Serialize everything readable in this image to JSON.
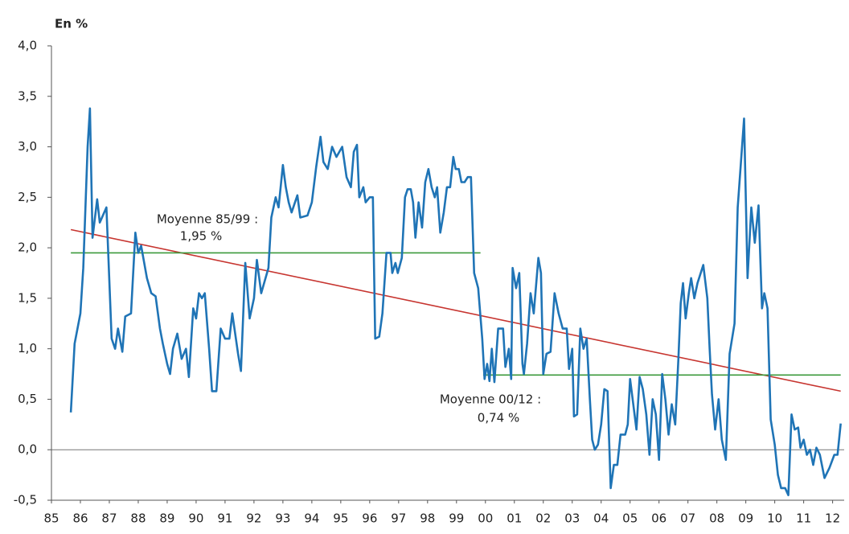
{
  "chart_data": {
    "type": "line",
    "y_label": "En %",
    "xlim": [
      1985,
      2012.4
    ],
    "xticks": [
      {
        "value": 1985,
        "label": "85"
      },
      {
        "value": 1986,
        "label": "86"
      },
      {
        "value": 1987,
        "label": "87"
      },
      {
        "value": 1988,
        "label": "88"
      },
      {
        "value": 1989,
        "label": "89"
      },
      {
        "value": 1990,
        "label": "90"
      },
      {
        "value": 1991,
        "label": "91"
      },
      {
        "value": 1992,
        "label": "92"
      },
      {
        "value": 1993,
        "label": "93"
      },
      {
        "value": 1994,
        "label": "94"
      },
      {
        "value": 1995,
        "label": "95"
      },
      {
        "value": 1996,
        "label": "96"
      },
      {
        "value": 1997,
        "label": "97"
      },
      {
        "value": 1998,
        "label": "98"
      },
      {
        "value": 1999,
        "label": "99"
      },
      {
        "value": 2000,
        "label": "00"
      },
      {
        "value": 2001,
        "label": "01"
      },
      {
        "value": 2002,
        "label": "02"
      },
      {
        "value": 2003,
        "label": "03"
      },
      {
        "value": 2004,
        "label": "04"
      },
      {
        "value": 2005,
        "label": "05"
      },
      {
        "value": 2006,
        "label": "06"
      },
      {
        "value": 2007,
        "label": "07"
      },
      {
        "value": 2008,
        "label": "08"
      },
      {
        "value": 2009,
        "label": "09"
      },
      {
        "value": 2010,
        "label": "10"
      },
      {
        "value": 2011,
        "label": "11"
      },
      {
        "value": 2012,
        "label": "12"
      }
    ],
    "ylim": [
      -0.5,
      4
    ],
    "yticks": [
      {
        "value": -0.5,
        "label": "-0,5"
      },
      {
        "value": 0,
        "label": "0,0"
      },
      {
        "value": 0.5,
        "label": "0,5"
      },
      {
        "value": 1,
        "label": "1,0"
      },
      {
        "value": 1.5,
        "label": "1,5"
      },
      {
        "value": 2,
        "label": "2,0"
      },
      {
        "value": 2.5,
        "label": "2,5"
      },
      {
        "value": 3,
        "label": "3,0"
      },
      {
        "value": 3.5,
        "label": "3,5"
      },
      {
        "value": 4,
        "label": "4,0"
      }
    ],
    "annotations": [
      "Moyenne 85/99 :",
      "1,95 %",
      "Moyenne 00/12 :",
      "0,74 %"
    ],
    "series": [
      {
        "color": "#1f74b6",
        "x": [
          1985.67,
          1985.8,
          1986.0,
          1986.1,
          1986.25,
          1986.33,
          1986.42,
          1986.58,
          1986.67,
          1986.9,
          1987.08,
          1987.2,
          1987.3,
          1987.45,
          1987.55,
          1987.75,
          1987.9,
          1988.0,
          1988.1,
          1988.3,
          1988.45,
          1988.6,
          1988.75,
          1988.85,
          1989.0,
          1989.1,
          1989.2,
          1989.35,
          1989.5,
          1989.65,
          1989.75,
          1989.9,
          1990.0,
          1990.1,
          1990.2,
          1990.3,
          1990.45,
          1990.55,
          1990.7,
          1990.85,
          1991.0,
          1991.15,
          1991.25,
          1991.45,
          1991.55,
          1991.7,
          1991.85,
          1992.0,
          1992.1,
          1992.25,
          1992.4,
          1992.5,
          1992.6,
          1992.75,
          1992.85,
          1993.0,
          1993.1,
          1993.2,
          1993.3,
          1993.5,
          1993.6,
          1993.85,
          1994.0,
          1994.15,
          1994.3,
          1994.4,
          1994.55,
          1994.7,
          1994.85,
          1995.05,
          1995.2,
          1995.35,
          1995.45,
          1995.56,
          1995.64,
          1995.78,
          1995.86,
          1996.0,
          1996.11,
          1996.19,
          1996.33,
          1996.44,
          1996.58,
          1996.72,
          1996.78,
          1996.89,
          1996.97,
          1997.11,
          1997.22,
          1997.31,
          1997.42,
          1997.5,
          1997.58,
          1997.69,
          1997.81,
          1997.92,
          1998.03,
          1998.14,
          1998.25,
          1998.33,
          1998.44,
          1998.56,
          1998.67,
          1998.78,
          1998.89,
          1998.97,
          1999.08,
          1999.17,
          1999.28,
          1999.39,
          1999.5,
          1999.61,
          1999.75,
          1999.89,
          1999.97,
          2000.06,
          2000.14,
          2000.22,
          2000.31,
          2000.44,
          2000.61,
          2000.69,
          2000.81,
          2000.89,
          2000.94,
          2001.06,
          2001.17,
          2001.28,
          2001.33,
          2001.44,
          2001.56,
          2001.67,
          2001.83,
          2001.92,
          2002.0,
          2002.11,
          2002.25,
          2002.39,
          2002.53,
          2002.67,
          2002.81,
          2002.89,
          2003.0,
          2003.06,
          2003.17,
          2003.28,
          2003.39,
          2003.5,
          2003.61,
          2003.69,
          2003.78,
          2003.89,
          2004.0,
          2004.11,
          2004.22,
          2004.33,
          2004.44,
          2004.56,
          2004.67,
          2004.83,
          2004.92,
          2005.0,
          2005.11,
          2005.22,
          2005.33,
          2005.44,
          2005.56,
          2005.67,
          2005.78,
          2005.89,
          2006.0,
          2006.11,
          2006.22,
          2006.33,
          2006.44,
          2006.56,
          2006.67,
          2006.75,
          2006.83,
          2006.92,
          2007.03,
          2007.11,
          2007.22,
          2007.33,
          2007.53,
          2007.67,
          2007.75,
          2007.83,
          2007.94,
          2008.06,
          2008.17,
          2008.31,
          2008.44,
          2008.61,
          2008.72,
          2008.94,
          2009.06,
          2009.19,
          2009.31,
          2009.44,
          2009.56,
          2009.64,
          2009.75,
          2009.86,
          2010.0,
          2010.11,
          2010.22,
          2010.36,
          2010.47,
          2010.58,
          2010.69,
          2010.81,
          2010.89,
          2011.0,
          2011.11,
          2011.22,
          2011.33,
          2011.44,
          2011.56,
          2011.72,
          2011.89,
          2012.06,
          2012.17,
          2012.28
        ],
        "values": [
          0.37,
          1.05,
          1.35,
          1.8,
          3.0,
          3.38,
          2.1,
          2.48,
          2.25,
          2.4,
          1.1,
          1.0,
          1.2,
          0.97,
          1.32,
          1.35,
          2.15,
          1.95,
          2.02,
          1.7,
          1.55,
          1.52,
          1.2,
          1.05,
          0.85,
          0.75,
          1.0,
          1.15,
          0.9,
          1.0,
          0.72,
          1.4,
          1.3,
          1.55,
          1.5,
          1.55,
          1.0,
          0.58,
          0.58,
          1.2,
          1.1,
          1.1,
          1.35,
          0.95,
          0.78,
          1.85,
          1.3,
          1.5,
          1.88,
          1.55,
          1.7,
          1.8,
          2.3,
          2.5,
          2.4,
          2.82,
          2.6,
          2.45,
          2.35,
          2.52,
          2.3,
          2.32,
          2.45,
          2.8,
          3.1,
          2.85,
          2.78,
          3.0,
          2.9,
          3.0,
          2.7,
          2.6,
          2.95,
          3.02,
          2.5,
          2.6,
          2.45,
          2.5,
          2.5,
          1.1,
          1.12,
          1.35,
          1.95,
          1.95,
          1.75,
          1.85,
          1.75,
          1.9,
          2.5,
          2.58,
          2.58,
          2.45,
          2.1,
          2.45,
          2.2,
          2.65,
          2.78,
          2.6,
          2.5,
          2.6,
          2.15,
          2.35,
          2.6,
          2.6,
          2.9,
          2.78,
          2.78,
          2.65,
          2.65,
          2.7,
          2.7,
          1.75,
          1.6,
          1.1,
          0.7,
          0.85,
          0.68,
          1.0,
          0.67,
          1.2,
          1.2,
          0.82,
          1.0,
          0.7,
          1.8,
          1.6,
          1.75,
          0.85,
          0.75,
          1.05,
          1.55,
          1.35,
          1.9,
          1.75,
          0.75,
          0.95,
          0.97,
          1.55,
          1.35,
          1.2,
          1.2,
          0.8,
          1.0,
          0.33,
          0.35,
          1.2,
          1.0,
          1.1,
          0.5,
          0.1,
          0.0,
          0.05,
          0.25,
          0.6,
          0.58,
          -0.38,
          -0.15,
          -0.15,
          0.15,
          0.15,
          0.25,
          0.7,
          0.45,
          0.2,
          0.72,
          0.6,
          0.35,
          -0.05,
          0.5,
          0.35,
          -0.1,
          0.75,
          0.5,
          0.15,
          0.45,
          0.25,
          0.9,
          1.45,
          1.65,
          1.3,
          1.55,
          1.7,
          1.5,
          1.65,
          1.83,
          1.5,
          1.0,
          0.55,
          0.2,
          0.5,
          0.1,
          -0.1,
          0.95,
          1.25,
          2.4,
          3.28,
          1.7,
          2.4,
          2.05,
          2.42,
          1.4,
          1.55,
          1.4,
          0.3,
          0.05,
          -0.25,
          -0.38,
          -0.38,
          -0.45,
          0.35,
          0.2,
          0.22,
          0.02,
          0.1,
          -0.05,
          0.0,
          -0.15,
          0.02,
          -0.05,
          -0.28,
          -0.18,
          -0.05,
          -0.05,
          0.26
        ]
      },
      {
        "color": "#3c9a3c",
        "x": [
          1985.67,
          1999.83
        ],
        "values": [
          1.95,
          1.95
        ]
      },
      {
        "color": "#3c9a3c",
        "x": [
          1999.92,
          2012.28
        ],
        "values": [
          0.74,
          0.74
        ]
      },
      {
        "color": "#c73530",
        "x": [
          1985.67,
          2012.28
        ],
        "values": [
          2.18,
          0.58
        ]
      }
    ]
  }
}
